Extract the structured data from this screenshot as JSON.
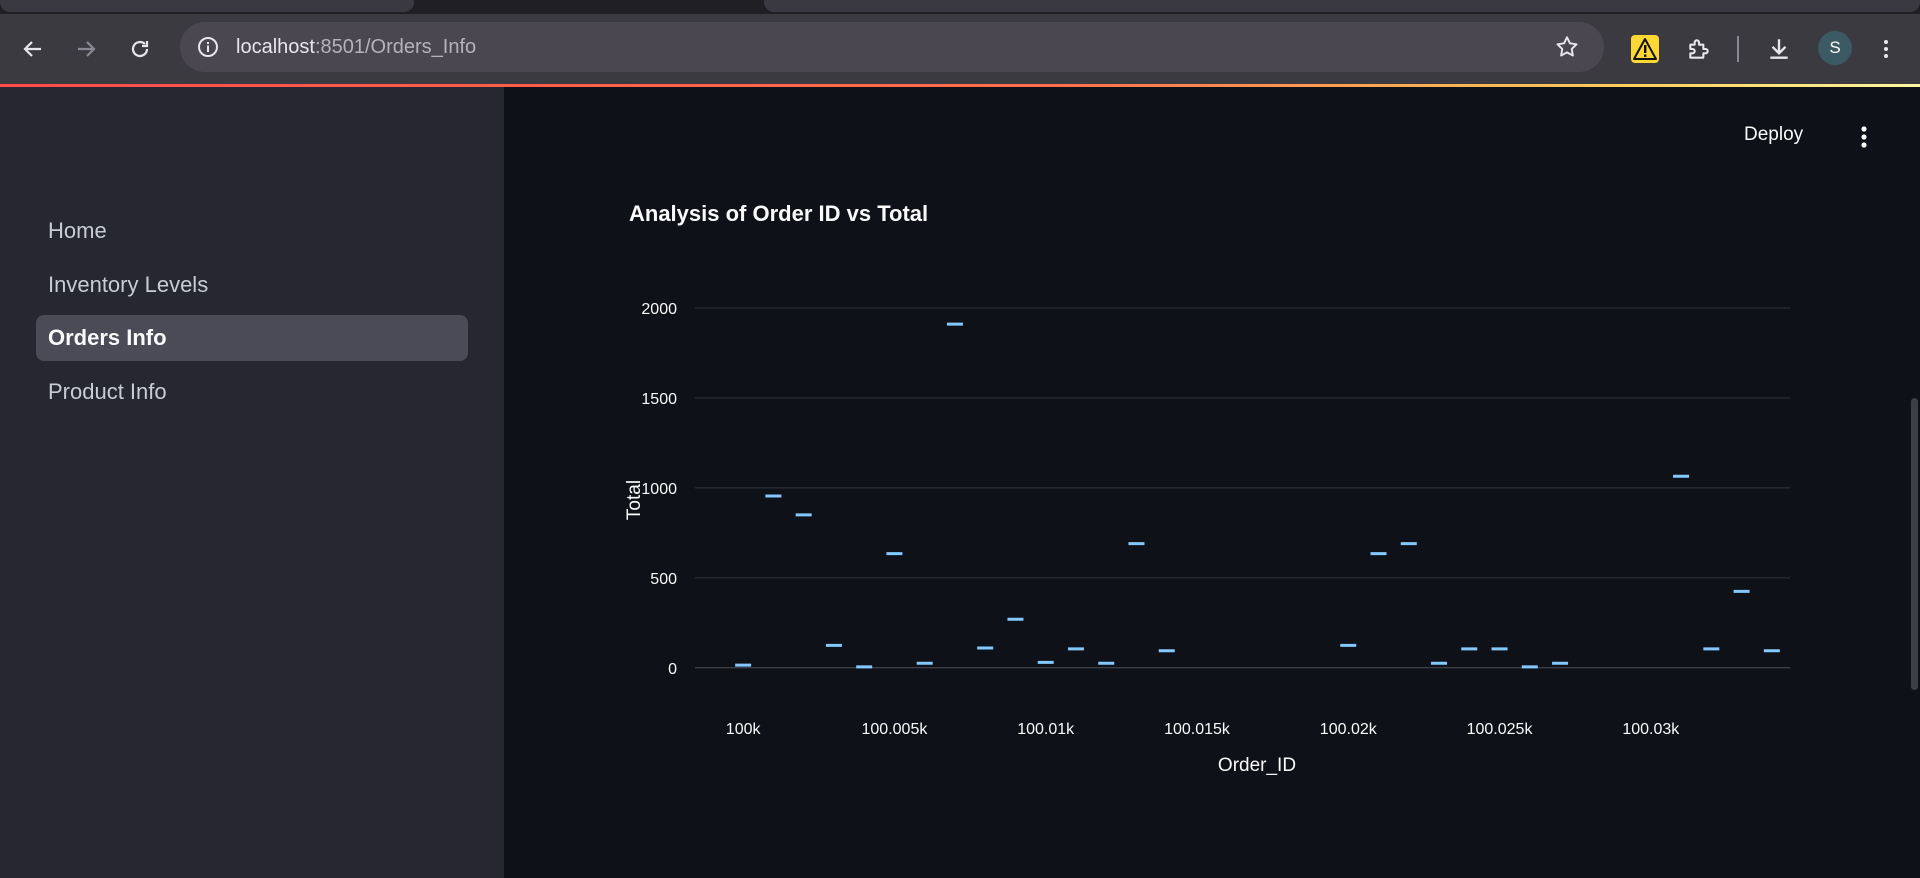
{
  "browser": {
    "url_host": "localhost",
    "url_path": ":8501/Orders_Info",
    "profile_initial": "S",
    "icons": [
      "back-arrow-icon",
      "forward-arrow-icon",
      "reload-icon",
      "site-info-icon",
      "bookmark-star-icon",
      "warning-extension-icon",
      "extensions-puzzle-icon",
      "download-icon",
      "browser-menu-icon"
    ]
  },
  "sidebar": {
    "items": [
      {
        "label": "Home",
        "active": false
      },
      {
        "label": "Inventory Levels",
        "active": false
      },
      {
        "label": "Orders Info",
        "active": true
      },
      {
        "label": "Product Info",
        "active": false
      }
    ]
  },
  "header": {
    "deploy_label": "Deploy"
  },
  "colors": {
    "accent": "#ff4b4b",
    "mark": "#83c9ff",
    "sidebar_bg": "#262730",
    "main_bg": "#0e1117"
  },
  "chart_title": "Analysis of Order ID vs Total",
  "chart_data": {
    "type": "scatter",
    "title": "Analysis of Order ID vs Total",
    "xlabel": "Order_ID",
    "ylabel": "Total",
    "xlim": [
      99999.4,
      100034.6
    ],
    "ylim": [
      -40,
      2100
    ],
    "x_ticks": [
      100000,
      100005,
      100010,
      100015,
      100020,
      100025,
      100030
    ],
    "x_tick_labels": [
      "100k",
      "100.005k",
      "100.01k",
      "100.015k",
      "100.02k",
      "100.025k",
      "100.03k"
    ],
    "y_ticks": [
      0,
      500,
      1000,
      1500,
      2000
    ],
    "y_tick_labels": [
      "0",
      "500",
      "1000",
      "1500",
      "2000"
    ],
    "grid": "horizontal",
    "points": [
      {
        "x": 100000,
        "y": 15
      },
      {
        "x": 100001,
        "y": 955
      },
      {
        "x": 100002,
        "y": 850
      },
      {
        "x": 100003,
        "y": 125
      },
      {
        "x": 100004,
        "y": 5
      },
      {
        "x": 100005,
        "y": 635
      },
      {
        "x": 100006,
        "y": 25
      },
      {
        "x": 100007,
        "y": 1910
      },
      {
        "x": 100008,
        "y": 110
      },
      {
        "x": 100009,
        "y": 270
      },
      {
        "x": 100010,
        "y": 30
      },
      {
        "x": 100011,
        "y": 105
      },
      {
        "x": 100012,
        "y": 25
      },
      {
        "x": 100013,
        "y": 690
      },
      {
        "x": 100014,
        "y": 95
      },
      {
        "x": 100020,
        "y": 125
      },
      {
        "x": 100021,
        "y": 635
      },
      {
        "x": 100022,
        "y": 690
      },
      {
        "x": 100023,
        "y": 25
      },
      {
        "x": 100024,
        "y": 105
      },
      {
        "x": 100025,
        "y": 105
      },
      {
        "x": 100026,
        "y": 5
      },
      {
        "x": 100027,
        "y": 25
      },
      {
        "x": 100031,
        "y": 1065
      },
      {
        "x": 100032,
        "y": 105
      },
      {
        "x": 100033,
        "y": 425
      },
      {
        "x": 100034,
        "y": 95
      }
    ]
  }
}
